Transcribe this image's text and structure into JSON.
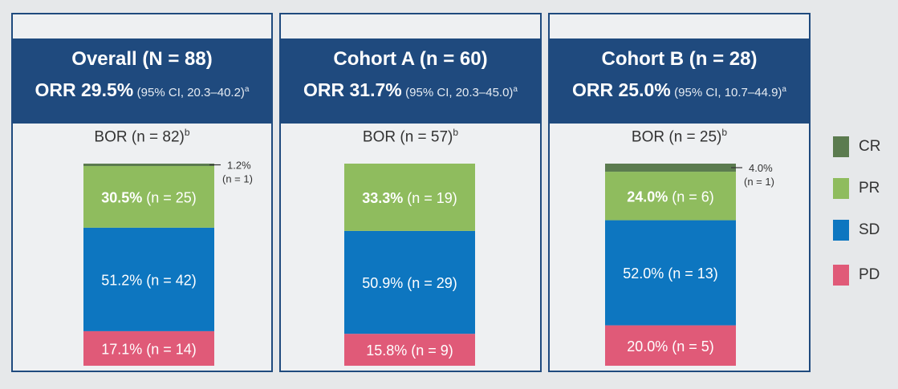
{
  "colors": {
    "CR": "#5b7b4f",
    "PR": "#8fbc5e",
    "SD": "#0d76c0",
    "PD": "#e05a78",
    "header": "#1f4a7e"
  },
  "legend": [
    "CR",
    "PR",
    "SD",
    "PD"
  ],
  "panels": [
    {
      "title": "Overall (N = 88)",
      "orr_main": "ORR 29.5%",
      "orr_ci": "(95% CI, 20.3–40.2)",
      "orr_sup": "a",
      "bor": "BOR (n = 82)",
      "bor_sup": "b"
    },
    {
      "title": "Cohort A (n = 60)",
      "orr_main": "ORR 31.7%",
      "orr_ci": "(95% CI, 20.3–45.0)",
      "orr_sup": "a",
      "bor": "BOR (n = 57)",
      "bor_sup": "b"
    },
    {
      "title": "Cohort B (n = 28)",
      "orr_main": "ORR 25.0%",
      "orr_ci": "(95% CI, 10.7–44.9)",
      "orr_sup": "a",
      "bor": "BOR (n = 25)",
      "bor_sup": "b"
    }
  ],
  "chart_data": {
    "type": "bar",
    "stacked": true,
    "categories": [
      "Overall",
      "Cohort A",
      "Cohort B"
    ],
    "series": [
      {
        "name": "CR",
        "values": [
          1.2,
          0,
          4.0
        ],
        "labels": [
          "1.2%|(n = 1)",
          "",
          "4.0%|(n = 1)"
        ]
      },
      {
        "name": "PR",
        "values": [
          30.5,
          33.3,
          24.0
        ],
        "labels": [
          "30.5%| (n = 25)",
          "33.3%| (n = 19)",
          "24.0%| (n = 6)"
        ]
      },
      {
        "name": "SD",
        "values": [
          51.2,
          50.9,
          52.0
        ],
        "labels": [
          "51.2% (n = 42)",
          "50.9% (n = 29)",
          "52.0% (n = 13)"
        ]
      },
      {
        "name": "PD",
        "values": [
          17.1,
          15.8,
          20.0
        ],
        "labels": [
          "17.1% (n = 14)",
          "15.8% (n = 9)",
          "20.0% (n = 5)"
        ]
      }
    ],
    "ylim": [
      0,
      100
    ]
  }
}
